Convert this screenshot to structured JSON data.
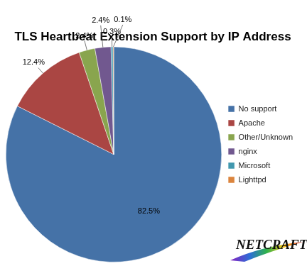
{
  "chart_data": {
    "type": "pie",
    "title": "TLS Heartbeat Extension Support by IP Address",
    "categories": [
      "No support",
      "Apache",
      "Other/Unknown",
      "nginx",
      "Microsoft",
      "Lighttpd"
    ],
    "values": [
      82.5,
      12.4,
      2.4,
      2.4,
      0.3,
      0.1
    ],
    "value_labels": [
      "82.5%",
      "12.4%",
      "2.4%",
      "2.4%",
      "0.3%",
      "0.1%"
    ],
    "colors": [
      "#4572A7",
      "#AA4643",
      "#89A54E",
      "#71588F",
      "#4198AF",
      "#DB843D"
    ],
    "data_labels": true,
    "legend": "right",
    "annotations": [
      "NETCRAFT"
    ]
  }
}
